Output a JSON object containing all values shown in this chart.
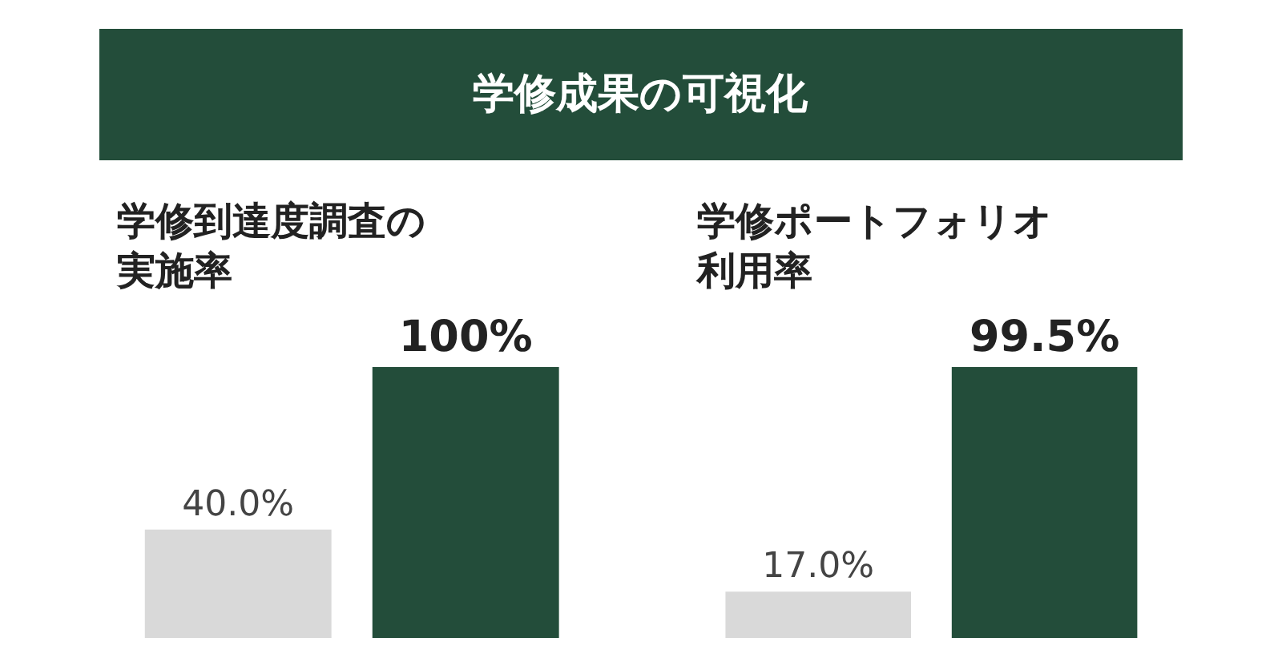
{
  "chart_data": [
    {
      "type": "other",
      "title": "学修成果の可視化",
      "color": "#234d3a"
    },
    {
      "type": "bar",
      "title": "学修到達度調査の実施率",
      "categories": [
        null,
        null
      ],
      "values": [
        40.0,
        100
      ],
      "colors": [
        "#d9d9d9",
        "#234d3a"
      ],
      "value_labels": [
        "40.0%",
        "100%"
      ]
    },
    {
      "type": "bar",
      "title": "学修ポートフォリオ利用率",
      "categories": [
        null,
        null
      ],
      "values": [
        17.0,
        99.5
      ],
      "colors": [
        "#d9d9d9",
        "#234d3a"
      ],
      "value_labels": [
        "17.0%",
        "99.5%"
      ]
    }
  ]
}
